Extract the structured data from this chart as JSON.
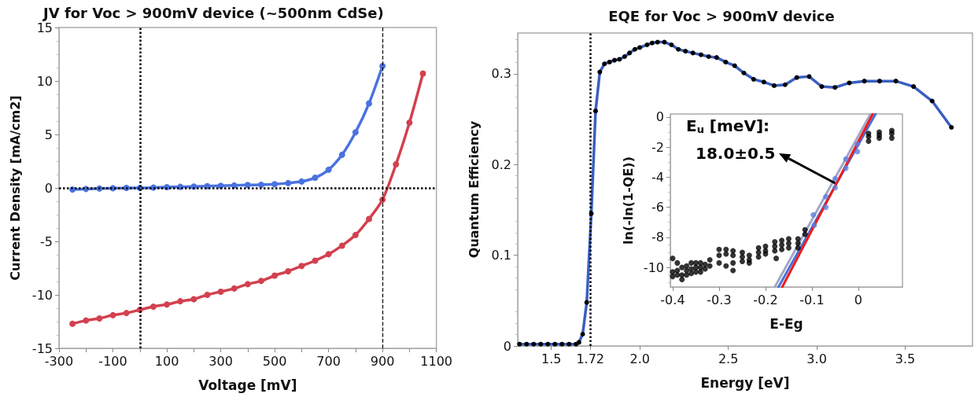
{
  "chart_data": [
    {
      "type": "line",
      "title": "JV for Voc > 900mV device (~500nm CdSe)",
      "xlabel": "Voltage [mV]",
      "ylabel": "Current Density [mA/cm2]",
      "x": [
        -250,
        -200,
        -150,
        -100,
        -50,
        0,
        50,
        100,
        150,
        200,
        250,
        300,
        350,
        400,
        450,
        500,
        550,
        600,
        650,
        700,
        750,
        800,
        850,
        900,
        950,
        1000,
        1050
      ],
      "series": [
        {
          "color": "#4a72e0",
          "values": [
            -0.15,
            -0.1,
            -0.05,
            -0.03,
            0.0,
            0.0,
            0.03,
            0.07,
            0.1,
            0.13,
            0.17,
            0.2,
            0.23,
            0.27,
            0.3,
            0.35,
            0.45,
            0.6,
            0.95,
            1.7,
            3.1,
            5.2,
            7.9,
            11.4
          ],
          "x": [
            -250,
            -200,
            -150,
            -100,
            -50,
            0,
            50,
            100,
            150,
            200,
            250,
            300,
            350,
            400,
            450,
            500,
            550,
            600,
            650,
            700,
            750,
            800,
            850,
            900
          ]
        },
        {
          "color": "#d2414f",
          "values": [
            -12.7,
            -12.4,
            -12.2,
            -11.9,
            -11.7,
            -11.4,
            -11.1,
            -10.9,
            -10.6,
            -10.4,
            -10.0,
            -9.7,
            -9.4,
            -9.0,
            -8.7,
            -8.2,
            -7.8,
            -7.3,
            -6.8,
            -6.2,
            -5.4,
            -4.4,
            -2.9,
            -1.1,
            2.2,
            6.1,
            10.7
          ]
        }
      ],
      "xlim": [
        -300,
        1100
      ],
      "xticks": [
        -300,
        {
          "value": -200,
          "label": null
        },
        -100,
        {
          "value": 0,
          "label": null
        },
        100,
        {
          "value": 200,
          "label": null
        },
        300,
        {
          "value": 400,
          "label": null
        },
        500,
        {
          "value": 600,
          "label": null
        },
        700,
        {
          "value": 800,
          "label": null
        },
        900,
        {
          "value": 1000,
          "label": null
        },
        1100
      ],
      "ylim": [
        -15,
        15
      ],
      "yticks": [
        -15,
        -10,
        -5,
        0,
        5,
        10,
        15
      ],
      "ref_lines": [
        {
          "axis": "x",
          "value": 0,
          "line_style": "dotted"
        },
        {
          "axis": "y",
          "value": 0,
          "line_style": "dotted"
        },
        {
          "axis": "x",
          "value": 900,
          "line_style": "dashed"
        }
      ],
      "marker": "circle",
      "line_style": "solid",
      "grid": false
    },
    {
      "type": "line",
      "title": "EQE for Voc > 900mV device",
      "xlabel": "Energy [eV]",
      "ylabel": "Quantum Efficiency",
      "x": [
        1.32,
        1.36,
        1.4,
        1.44,
        1.48,
        1.52,
        1.56,
        1.6,
        1.64,
        1.656,
        1.677,
        1.7,
        1.726,
        1.75,
        1.774,
        1.8,
        1.829,
        1.857,
        1.885,
        1.914,
        1.942,
        1.972,
        2.0,
        2.041,
        2.07,
        2.1,
        2.139,
        2.179,
        2.218,
        2.258,
        2.3,
        2.346,
        2.389,
        2.434,
        2.485,
        2.536,
        2.588,
        2.643,
        2.701,
        2.759,
        2.821,
        2.887,
        2.957,
        3.028,
        3.103,
        3.184,
        3.269,
        3.355,
        3.447,
        3.547,
        3.652,
        3.761
      ],
      "series": [
        {
          "color": "#3a5fc0",
          "values": [
            0.002,
            0.002,
            0.002,
            0.002,
            0.002,
            0.002,
            0.002,
            0.002,
            0.002,
            0.004,
            0.013,
            0.048,
            0.146,
            0.259,
            0.302,
            0.311,
            0.313,
            0.315,
            0.316,
            0.319,
            0.323,
            0.327,
            0.329,
            0.332,
            0.334,
            0.335,
            0.335,
            0.332,
            0.327,
            0.325,
            0.323,
            0.321,
            0.319,
            0.318,
            0.313,
            0.309,
            0.301,
            0.294,
            0.291,
            0.287,
            0.288,
            0.296,
            0.297,
            0.286,
            0.285,
            0.29,
            0.292,
            0.292,
            0.292,
            0.286,
            0.27,
            0.241
          ]
        }
      ],
      "xlim": [
        1.31,
        3.88
      ],
      "xticks": [
        1.5,
        1.72,
        {
          "value": 2,
          "label": "2.0"
        },
        2.5,
        {
          "value": 3,
          "label": "3.0"
        },
        3.5
      ],
      "ylim": [
        0,
        0.345
      ],
      "yticks": [
        0,
        0.1,
        0.2,
        0.3
      ],
      "ref_lines": [
        {
          "axis": "x",
          "value": 1.72,
          "line_style": "dotted"
        }
      ],
      "marker": "circle",
      "line_style": "solid",
      "grid": false
    },
    {
      "type": "scatter",
      "xlabel": "E-Eg",
      "ylabel": "ln(-ln(1-QE))",
      "annotations": [
        "E$_{u}$ [meV]:",
        {
          "text": "18.0±0.5",
          "x": -0.05,
          "y": -4.4
        }
      ],
      "series": [
        {
          "color": "#000000",
          "x": [
            -0.4,
            -0.4,
            -0.4,
            -0.39,
            -0.39,
            -0.39,
            -0.38,
            -0.38,
            -0.38,
            -0.37,
            -0.37,
            -0.37,
            -0.36,
            -0.36,
            -0.36,
            -0.35,
            -0.35,
            -0.35,
            -0.34,
            -0.34,
            -0.34,
            -0.33,
            -0.33,
            -0.32,
            -0.32,
            -0.3,
            -0.3,
            -0.3,
            -0.285,
            -0.285,
            -0.285,
            -0.27,
            -0.27,
            -0.27,
            -0.27,
            -0.25,
            -0.25,
            -0.25,
            -0.235,
            -0.235,
            -0.235,
            -0.215,
            -0.215,
            -0.215,
            -0.2,
            -0.2,
            -0.2,
            -0.177,
            -0.18,
            -0.18,
            -0.18,
            -0.165,
            -0.165,
            -0.165,
            -0.15,
            -0.15,
            -0.15,
            -0.13,
            -0.13,
            -0.13,
            -0.115,
            -0.115,
            0.022,
            0.022,
            0.022,
            0.045,
            0.045,
            0.045,
            0.072,
            0.072,
            0.072
          ],
          "values": [
            -9.4,
            -10.3,
            -10.6,
            -9.7,
            -10.2,
            -10.5,
            -10.0,
            -10.5,
            -10.8,
            -9.9,
            -10.2,
            -10.5,
            -9.7,
            -10.1,
            -10.4,
            -9.7,
            -10.0,
            -10.3,
            -9.7,
            -10.0,
            -10.3,
            -9.8,
            -10.1,
            -9.5,
            -9.9,
            -8.8,
            -9.2,
            -9.7,
            -8.8,
            -9.1,
            -9.9,
            -8.9,
            -9.2,
            -9.7,
            -10.2,
            -9.0,
            -9.3,
            -9.6,
            -9.2,
            -9.5,
            -9.7,
            -8.7,
            -9.0,
            -9.3,
            -8.6,
            -8.9,
            -9.1,
            -9.4,
            -8.3,
            -8.6,
            -8.9,
            -8.2,
            -8.5,
            -8.8,
            -8.1,
            -8.4,
            -8.7,
            -8.1,
            -8.4,
            -8.7,
            -7.5,
            -7.8,
            -1.1,
            -1.3,
            -1.6,
            -1.0,
            -1.2,
            -1.4,
            -0.9,
            -1.1,
            -1.4
          ]
        },
        {
          "color": "#5b7fe0",
          "x": [
            -0.095,
            -0.097,
            -0.07,
            -0.07,
            -0.05,
            -0.05,
            -0.027,
            -0.027,
            -0.002,
            -0.002
          ],
          "values": [
            -7.2,
            -6.5,
            -6.0,
            -5.3,
            -4.7,
            -4.1,
            -3.4,
            -2.8,
            -2.3,
            -1.8
          ]
        },
        {
          "type": "line",
          "marker": "none",
          "color": "#a0a8c8",
          "x": [
            -0.18,
            0.026
          ],
          "values": [
            -11.3,
            0.2
          ]
        },
        {
          "type": "line",
          "marker": "none",
          "color": "#4a6fd8",
          "x": [
            -0.172,
            0.037
          ],
          "values": [
            -11.3,
            0.2
          ]
        },
        {
          "type": "line",
          "marker": "none",
          "color": "#ee1c1c",
          "x": [
            -0.164,
            0.031
          ],
          "values": [
            -11.3,
            0.2
          ]
        }
      ],
      "xlim": [
        -0.405,
        0.095
      ],
      "xticks": [
        -0.4,
        -0.3,
        -0.2,
        -0.1,
        0
      ],
      "ylim": [
        -11.3,
        0.2
      ],
      "yticks": [
        -10,
        -8,
        -6,
        -4,
        -2,
        0
      ],
      "marker": "circle",
      "grid": false
    }
  ]
}
